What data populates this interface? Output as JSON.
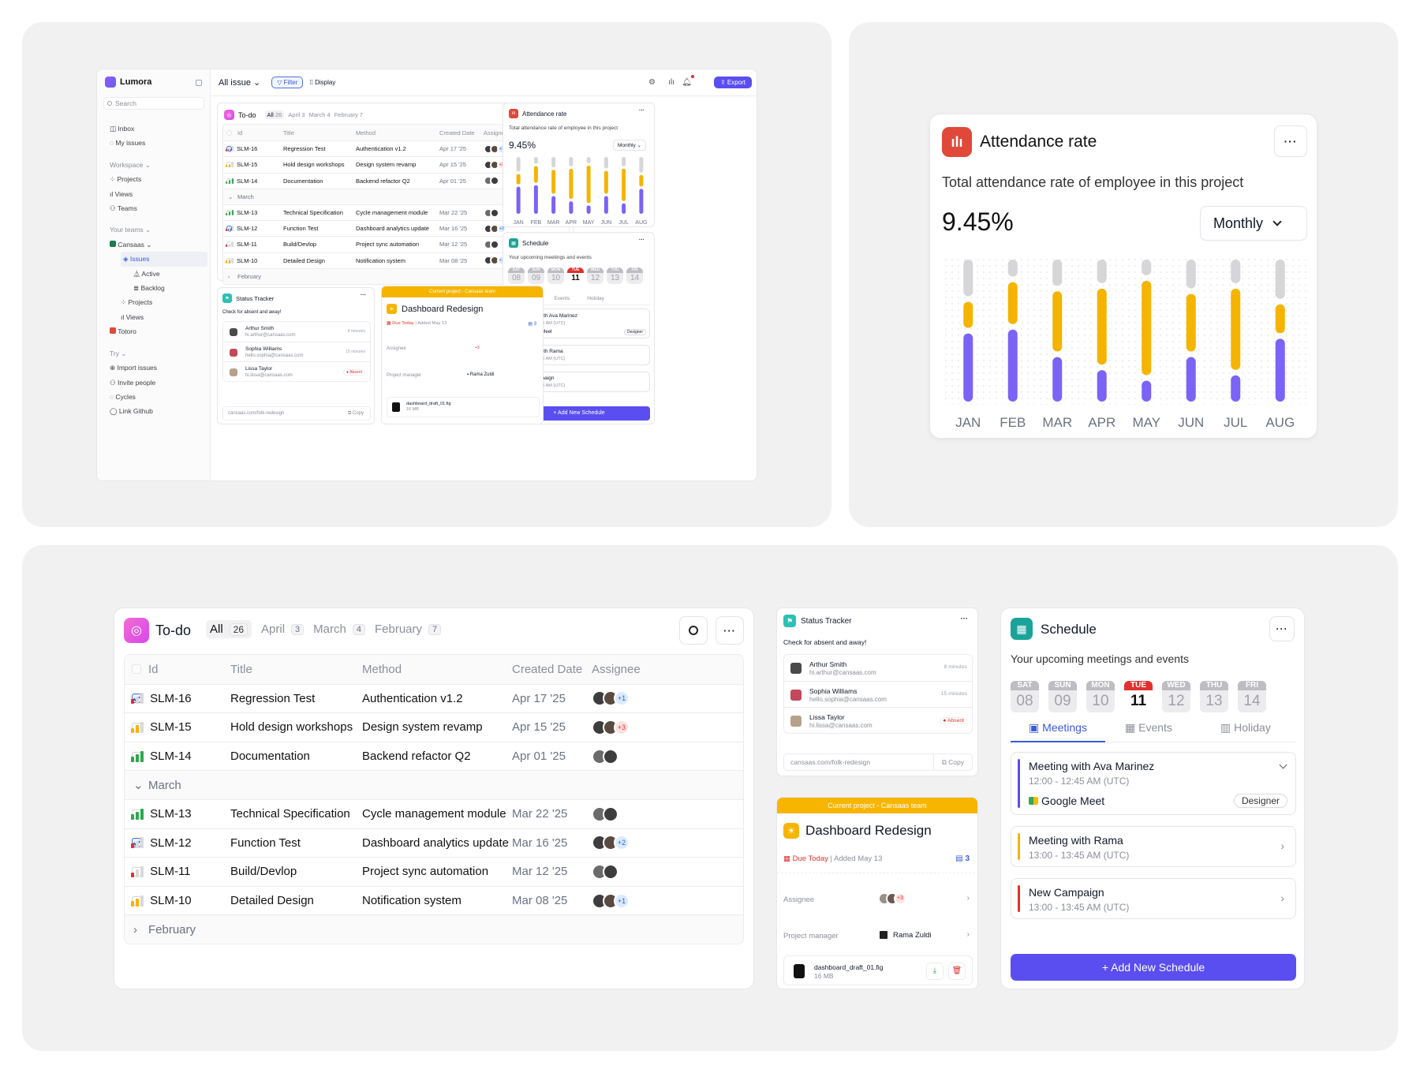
{
  "colors": {
    "accent": "#5b4ef0",
    "purple": "#7a63f5",
    "yellow": "#f5b400",
    "red": "#e0312e",
    "green": "#2fa84f",
    "grey": "#d6d6d9"
  },
  "app": {
    "brand": "Lumora",
    "search_placeholder": "Search",
    "nav": {
      "inbox": "Inbox",
      "my_issues": "My issues"
    },
    "workspace": {
      "title": "Workspace ⌄",
      "projects": "Projects",
      "views": "Views",
      "teams": "Teams"
    },
    "your_teams": {
      "title": "Your teams ⌄",
      "cansaas": "Cansaas ⌄",
      "issues": "Issues",
      "active": "Active",
      "backlog": "Backlog",
      "projects": "Projects",
      "views": "Views",
      "totoro": "Totoro"
    },
    "try": {
      "title": "Try ⌄",
      "import": "Import issues",
      "invite": "Invite people",
      "cycles": "Cycles",
      "github": "Link Github"
    },
    "topbar": {
      "view": "All issue",
      "filter": "Filter",
      "display": "Display",
      "export": "Export"
    }
  },
  "todo": {
    "title": "To-do",
    "tabs": [
      {
        "label": "All",
        "count": "26"
      },
      {
        "label": "April",
        "count": "3"
      },
      {
        "label": "March",
        "count": "4"
      },
      {
        "label": "February",
        "count": "7"
      }
    ],
    "headers": {
      "id": "Id",
      "title": "Title",
      "method": "Method",
      "date": "Created Date",
      "assignee": "Assignee"
    },
    "rows_top": [
      {
        "id": "SLM-16",
        "title": "Regression Test",
        "method": "Authentication v1.2",
        "date": "Apr 17 '25",
        "extra": "+1",
        "checked": true,
        "prio": 1
      },
      {
        "id": "SLM-15",
        "title": "Hold design workshops",
        "method": "Design system revamp",
        "date": "Apr 15 '25",
        "extra": "+3",
        "checked": false,
        "prio": 2
      },
      {
        "id": "SLM-14",
        "title": "Documentation",
        "method": "Backend refactor Q2",
        "date": "Apr 01 '25",
        "extra": "",
        "checked": false,
        "prio": 3
      }
    ],
    "group_march": "March",
    "rows_march": [
      {
        "id": "SLM-13",
        "title": "Technical Specification",
        "method": "Cycle management module",
        "date": "Mar 22 '25",
        "extra": "",
        "checked": false,
        "prio": 3
      },
      {
        "id": "SLM-12",
        "title": "Function Test",
        "method": "Dashboard analytics update",
        "date": "Mar 16 '25",
        "extra": "+2",
        "checked": true,
        "prio": 1
      },
      {
        "id": "SLM-11",
        "title": "Build/Devlop",
        "method": "Project sync automation",
        "date": "Mar 12 '25",
        "extra": "",
        "checked": false,
        "prio": 1
      },
      {
        "id": "SLM-10",
        "title": "Detailed Design",
        "method": "Notification system",
        "date": "Mar 08 '25",
        "extra": "+1",
        "checked": false,
        "prio": 2
      }
    ],
    "group_feb": "February"
  },
  "attendance": {
    "title": "Attendance rate",
    "subtitle": "Total attendance rate of employee in this project",
    "value": "9.45%",
    "period": "Monthly",
    "months": [
      "JAN",
      "FEB",
      "MAR",
      "APR",
      "MAY",
      "JUN",
      "JUL",
      "AUG"
    ]
  },
  "chart_data": {
    "type": "bar",
    "categories": [
      "JAN",
      "FEB",
      "MAR",
      "APR",
      "MAY",
      "JUN",
      "JUL",
      "AUG"
    ],
    "series": [
      {
        "values": [
          0.28,
          0.13,
          0.2,
          0.18,
          0.12,
          0.22,
          0.18,
          0.3
        ]
      },
      {
        "values": [
          0.2,
          0.32,
          0.46,
          0.58,
          0.72,
          0.44,
          0.62,
          0.22
        ]
      },
      {
        "values": [
          0.52,
          0.55,
          0.34,
          0.24,
          0.16,
          0.34,
          0.2,
          0.48
        ]
      }
    ],
    "title": "Attendance rate",
    "xlabel": "",
    "ylabel": "",
    "ylim": [
      0,
      1
    ]
  },
  "schedule": {
    "title": "Schedule",
    "subtitle": "Your upcoming meetings and events",
    "days": [
      {
        "n": "SAT",
        "d": "08"
      },
      {
        "n": "SUN",
        "d": "09"
      },
      {
        "n": "MON",
        "d": "10"
      },
      {
        "n": "TUE",
        "d": "11"
      },
      {
        "n": "WED",
        "d": "12"
      },
      {
        "n": "THU",
        "d": "13"
      },
      {
        "n": "FRI",
        "d": "14"
      }
    ],
    "tabs": {
      "meetings": "Meetings",
      "events": "Events",
      "holiday": "Holiday"
    },
    "items": [
      {
        "title": "Meeting with Ava Marinez",
        "time": "12:00 - 12:45 AM (UTC)",
        "place": "Google Meet",
        "tag": "Designer"
      },
      {
        "title": "Meeting with Rama",
        "time": "13:00 - 13:45 AM (UTC)"
      },
      {
        "title": "New Campaign",
        "time": "13:00 - 13:45 AM (UTC)"
      }
    ],
    "add": "+ Add New Schedule"
  },
  "status": {
    "title": "Status Tracker",
    "subtitle": "Check for absent and away!",
    "people": [
      {
        "name": "Arthur Smith",
        "email": "hi.arthur@cansaas.com",
        "state": "8 minutes"
      },
      {
        "name": "Sophia Williams",
        "email": "hello.sophia@cansaas.com",
        "state": "15 minutes"
      },
      {
        "name": "Lissa Taylor",
        "email": "hi.lissa@cansaas.com",
        "state": "Absent"
      }
    ],
    "link": "cansaas.com/folk-redesign",
    "copy": "Copy"
  },
  "project": {
    "banner": "Current project - Cansaas team",
    "title": "Dashboard Redesign",
    "due": "Due Today",
    "added": "Added May 13",
    "count": "3",
    "assignee_label": "Assignee",
    "assignee_extra": "+3",
    "pm_label": "Project manager",
    "pm_name": "Rama Zuldi",
    "file": "dashboard_draft_01.fig",
    "size": "16 MB"
  }
}
